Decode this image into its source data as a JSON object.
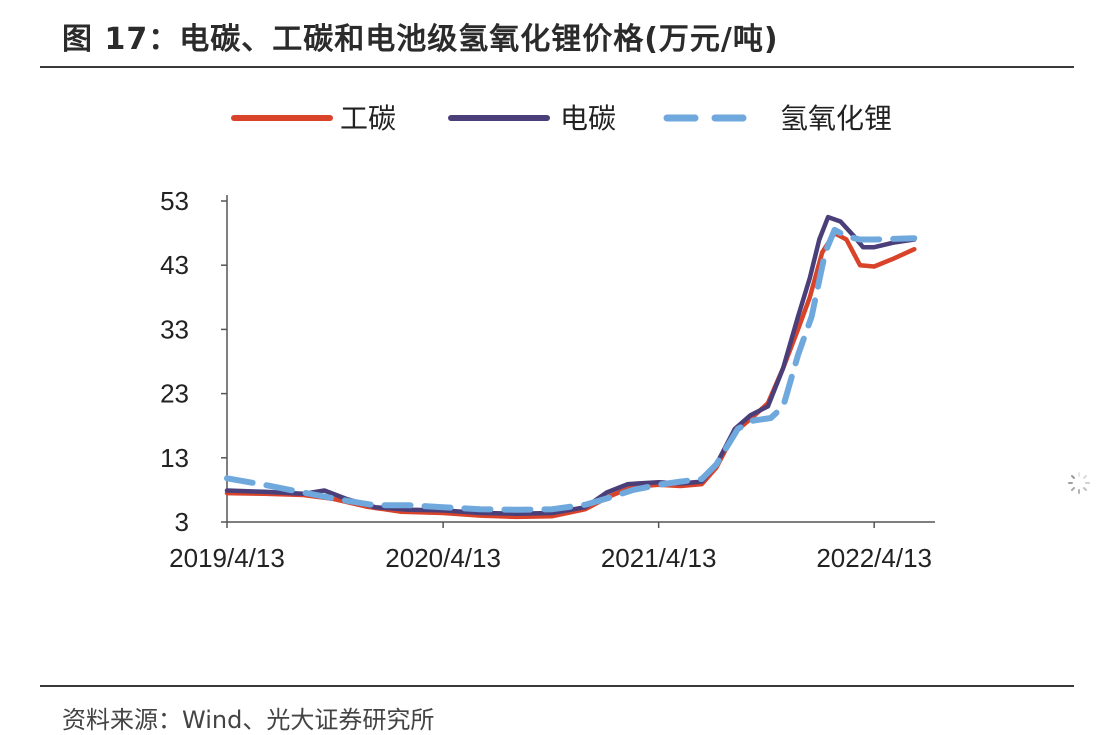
{
  "figure": {
    "title": "图 17：电碳、工碳和电池级氢氧化锂价格(万元/吨)",
    "source": "资料来源：Wind、光大证券研究所"
  },
  "chart_data": {
    "type": "line",
    "title": "电碳、工碳和电池级氢氧化锂价格(万元/吨)",
    "ylabel": "",
    "xlabel": "",
    "ylim": [
      3,
      53
    ],
    "yticks": [
      3,
      13,
      23,
      33,
      43,
      53
    ],
    "xticks": [
      "2019/4/13",
      "2020/4/13",
      "2021/4/13",
      "2022/4/13"
    ],
    "x_range": [
      "2019-04-13",
      "2022-07-25"
    ],
    "legend_position": "top",
    "grid": false,
    "series": [
      {
        "name": "工碳",
        "color": "#d9432a",
        "dash": "solid",
        "points": [
          [
            "2019-04-13",
            7.5
          ],
          [
            "2019-06-15",
            7.4
          ],
          [
            "2019-08-20",
            7.2
          ],
          [
            "2019-10-10",
            6.6
          ],
          [
            "2019-12-05",
            5.4
          ],
          [
            "2020-02-01",
            4.6
          ],
          [
            "2020-04-13",
            4.4
          ],
          [
            "2020-06-15",
            4.0
          ],
          [
            "2020-08-15",
            3.8
          ],
          [
            "2020-10-15",
            3.9
          ],
          [
            "2020-12-10",
            5.0
          ],
          [
            "2021-01-20",
            7.0
          ],
          [
            "2021-03-01",
            8.5
          ],
          [
            "2021-04-13",
            8.8
          ],
          [
            "2021-05-20",
            8.6
          ],
          [
            "2021-06-25",
            8.9
          ],
          [
            "2021-07-20",
            11.5
          ],
          [
            "2021-08-20",
            17.0
          ],
          [
            "2021-09-15",
            19.0
          ],
          [
            "2021-10-15",
            21.5
          ],
          [
            "2021-11-10",
            27.0
          ],
          [
            "2021-12-05",
            33.0
          ],
          [
            "2021-12-25",
            38.0
          ],
          [
            "2022-01-15",
            45.0
          ],
          [
            "2022-02-05",
            48.0
          ],
          [
            "2022-02-25",
            47.0
          ],
          [
            "2022-03-20",
            43.0
          ],
          [
            "2022-04-13",
            42.8
          ],
          [
            "2022-05-15",
            44.0
          ],
          [
            "2022-06-20",
            45.5
          ]
        ]
      },
      {
        "name": "电碳",
        "color": "#4b3f7a",
        "dash": "solid",
        "points": [
          [
            "2019-04-13",
            7.9
          ],
          [
            "2019-06-15",
            7.7
          ],
          [
            "2019-08-20",
            7.4
          ],
          [
            "2019-09-25",
            7.9
          ],
          [
            "2019-11-01",
            6.6
          ],
          [
            "2019-12-20",
            5.3
          ],
          [
            "2020-02-15",
            4.9
          ],
          [
            "2020-04-13",
            4.8
          ],
          [
            "2020-06-15",
            4.4
          ],
          [
            "2020-08-15",
            4.3
          ],
          [
            "2020-10-15",
            4.4
          ],
          [
            "2020-12-10",
            5.3
          ],
          [
            "2021-01-15",
            7.6
          ],
          [
            "2021-02-20",
            8.9
          ],
          [
            "2021-04-13",
            9.2
          ],
          [
            "2021-05-20",
            9.0
          ],
          [
            "2021-06-25",
            9.3
          ],
          [
            "2021-07-20",
            12.0
          ],
          [
            "2021-08-20",
            17.5
          ],
          [
            "2021-09-15",
            19.6
          ],
          [
            "2021-10-15",
            21.0
          ],
          [
            "2021-11-10",
            27.0
          ],
          [
            "2021-12-05",
            35.0
          ],
          [
            "2021-12-25",
            41.0
          ],
          [
            "2022-01-10",
            47.0
          ],
          [
            "2022-01-25",
            50.5
          ],
          [
            "2022-02-15",
            49.8
          ],
          [
            "2022-03-10",
            47.5
          ],
          [
            "2022-03-25",
            45.8
          ],
          [
            "2022-04-13",
            45.8
          ],
          [
            "2022-05-15",
            46.5
          ],
          [
            "2022-06-20",
            47.0
          ]
        ]
      },
      {
        "name": "氢氧化锂",
        "color": "#6fa8dc",
        "dash": "dashed",
        "points": [
          [
            "2019-04-13",
            9.8
          ],
          [
            "2019-06-15",
            8.8
          ],
          [
            "2019-08-20",
            7.6
          ],
          [
            "2019-10-20",
            6.5
          ],
          [
            "2019-12-20",
            5.6
          ],
          [
            "2020-02-15",
            5.6
          ],
          [
            "2020-04-13",
            5.3
          ],
          [
            "2020-06-15",
            5.0
          ],
          [
            "2020-08-15",
            4.9
          ],
          [
            "2020-10-15",
            5.0
          ],
          [
            "2020-12-10",
            5.7
          ],
          [
            "2021-01-20",
            6.8
          ],
          [
            "2021-03-01",
            8.0
          ],
          [
            "2021-04-13",
            8.8
          ],
          [
            "2021-05-20",
            9.3
          ],
          [
            "2021-06-25",
            9.7
          ],
          [
            "2021-07-20",
            12.0
          ],
          [
            "2021-08-25",
            17.5
          ],
          [
            "2021-09-20",
            18.8
          ],
          [
            "2021-10-20",
            19.2
          ],
          [
            "2021-11-10",
            21.0
          ],
          [
            "2021-12-05",
            29.0
          ],
          [
            "2021-12-28",
            35.0
          ],
          [
            "2022-01-20",
            45.0
          ],
          [
            "2022-02-05",
            48.5
          ],
          [
            "2022-02-25",
            47.5
          ],
          [
            "2022-03-20",
            47.0
          ],
          [
            "2022-04-13",
            47.0
          ],
          [
            "2022-06-20",
            47.2
          ]
        ]
      }
    ]
  }
}
